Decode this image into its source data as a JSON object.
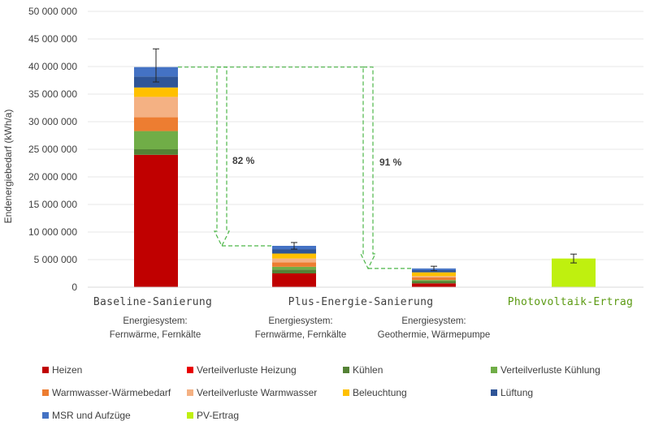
{
  "chart_data": {
    "type": "bar",
    "stacked": true,
    "ylabel": "Endenergiebedarf (kWh/a)",
    "ylim": [
      0,
      50000000
    ],
    "yticks": [
      0,
      5000000,
      10000000,
      15000000,
      20000000,
      25000000,
      30000000,
      35000000,
      40000000,
      45000000,
      50000000
    ],
    "ytick_labels": [
      "0",
      "5 000 000",
      "10 000 000",
      "15 000 000",
      "20 000 000",
      "25 000 000",
      "30 000 000",
      "35 000 000",
      "40 000 000",
      "45 000 000",
      "50 000 000"
    ],
    "categories": [
      {
        "label": "Baseline-Sanierung",
        "sub1": "Energiesystem:",
        "sub2": "Fernwärme, Fernkälte",
        "highlight": false
      },
      {
        "label": "Plus-Energie-Sanierung",
        "sub1": "Energiesystem:",
        "sub2": "Fernwärme,  Fernkälte",
        "highlight": false
      },
      {
        "label": "",
        "sub1": "Energiesystem:",
        "sub2": "Geothermie, Wärmepumpe",
        "highlight": false
      },
      {
        "label": "Photovoltaik-Ertrag",
        "sub1": "",
        "sub2": "",
        "highlight": true
      }
    ],
    "series": [
      {
        "name": "Heizen",
        "color": "#C00000",
        "values": [
          24000000,
          2500000,
          700000,
          0
        ]
      },
      {
        "name": "Verteilverluste Heizung",
        "color": "#E80000",
        "values": [
          0,
          0,
          0,
          0
        ]
      },
      {
        "name": "Kühlen",
        "color": "#548235",
        "values": [
          1000000,
          700000,
          400000,
          0
        ]
      },
      {
        "name": "Verteilverluste Kühlung",
        "color": "#70AD47",
        "values": [
          3300000,
          500000,
          200000,
          0
        ]
      },
      {
        "name": "Warmwasser-Wärmebedarf",
        "color": "#ED7D31",
        "values": [
          2500000,
          800000,
          500000,
          0
        ]
      },
      {
        "name": "Verteilverluste Warmwasser",
        "color": "#F4B183",
        "values": [
          3700000,
          700000,
          200000,
          0
        ]
      },
      {
        "name": "Beleuchtung",
        "color": "#FFC000",
        "values": [
          1700000,
          900000,
          700000,
          0
        ]
      },
      {
        "name": "Lüftung",
        "color": "#2F5597",
        "values": [
          2000000,
          800000,
          400000,
          0
        ]
      },
      {
        "name": "MSR und Aufzüge",
        "color": "#4472C4",
        "values": [
          1700000,
          600000,
          300000,
          0
        ]
      },
      {
        "name": "PV-Ertrag",
        "color": "#BFF00F",
        "values": [
          0,
          0,
          0,
          5200000
        ]
      }
    ],
    "totals": [
      39900000,
      7500000,
      3400000,
      5200000
    ],
    "error_bars": [
      {
        "low": 37200000,
        "high": 43200000
      },
      {
        "low": 6900000,
        "high": 8100000
      },
      {
        "low": 3000000,
        "high": 3800000
      },
      {
        "low": 4400000,
        "high": 6000000
      }
    ],
    "reductions": [
      {
        "label": "82 %",
        "from_value": 39900000,
        "to_value": 7500000
      },
      {
        "label": "91 %",
        "from_value": 39900000,
        "to_value": 3400000
      }
    ],
    "second_label": "Plus-Energie-Sanierung",
    "legend_position": "bottom",
    "highlight_color": "#5B9A12"
  }
}
